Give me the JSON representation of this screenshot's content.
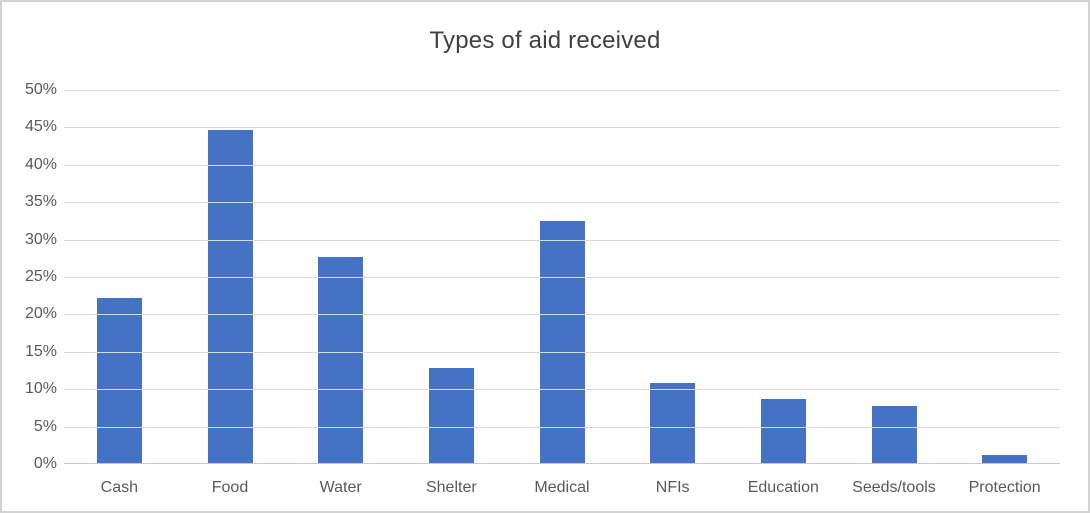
{
  "chart_data": {
    "type": "bar",
    "title": "Types of aid received",
    "categories": [
      "Cash",
      "Food",
      "Water",
      "Shelter",
      "Medical",
      "NFIs",
      "Education",
      "Seeds/tools",
      "Protection"
    ],
    "values": [
      22.2,
      44.7,
      27.7,
      12.8,
      32.5,
      10.8,
      8.7,
      7.7,
      1.2
    ],
    "xlabel": "",
    "ylabel": "",
    "ylim": [
      0,
      50
    ],
    "ytick_step": 5,
    "ytick_labels": [
      "0%",
      "5%",
      "10%",
      "15%",
      "20%",
      "25%",
      "30%",
      "35%",
      "40%",
      "45%",
      "50%"
    ],
    "grid": true,
    "legend_position": "none",
    "colors": {
      "bar": "#4472C4",
      "gridline": "#D9D9D9",
      "axis_line": "#C6C6C6",
      "title_text": "#404040",
      "tick_text": "#595959",
      "frame_border": "#D2D2D2",
      "background": "#FFFFFF"
    }
  }
}
